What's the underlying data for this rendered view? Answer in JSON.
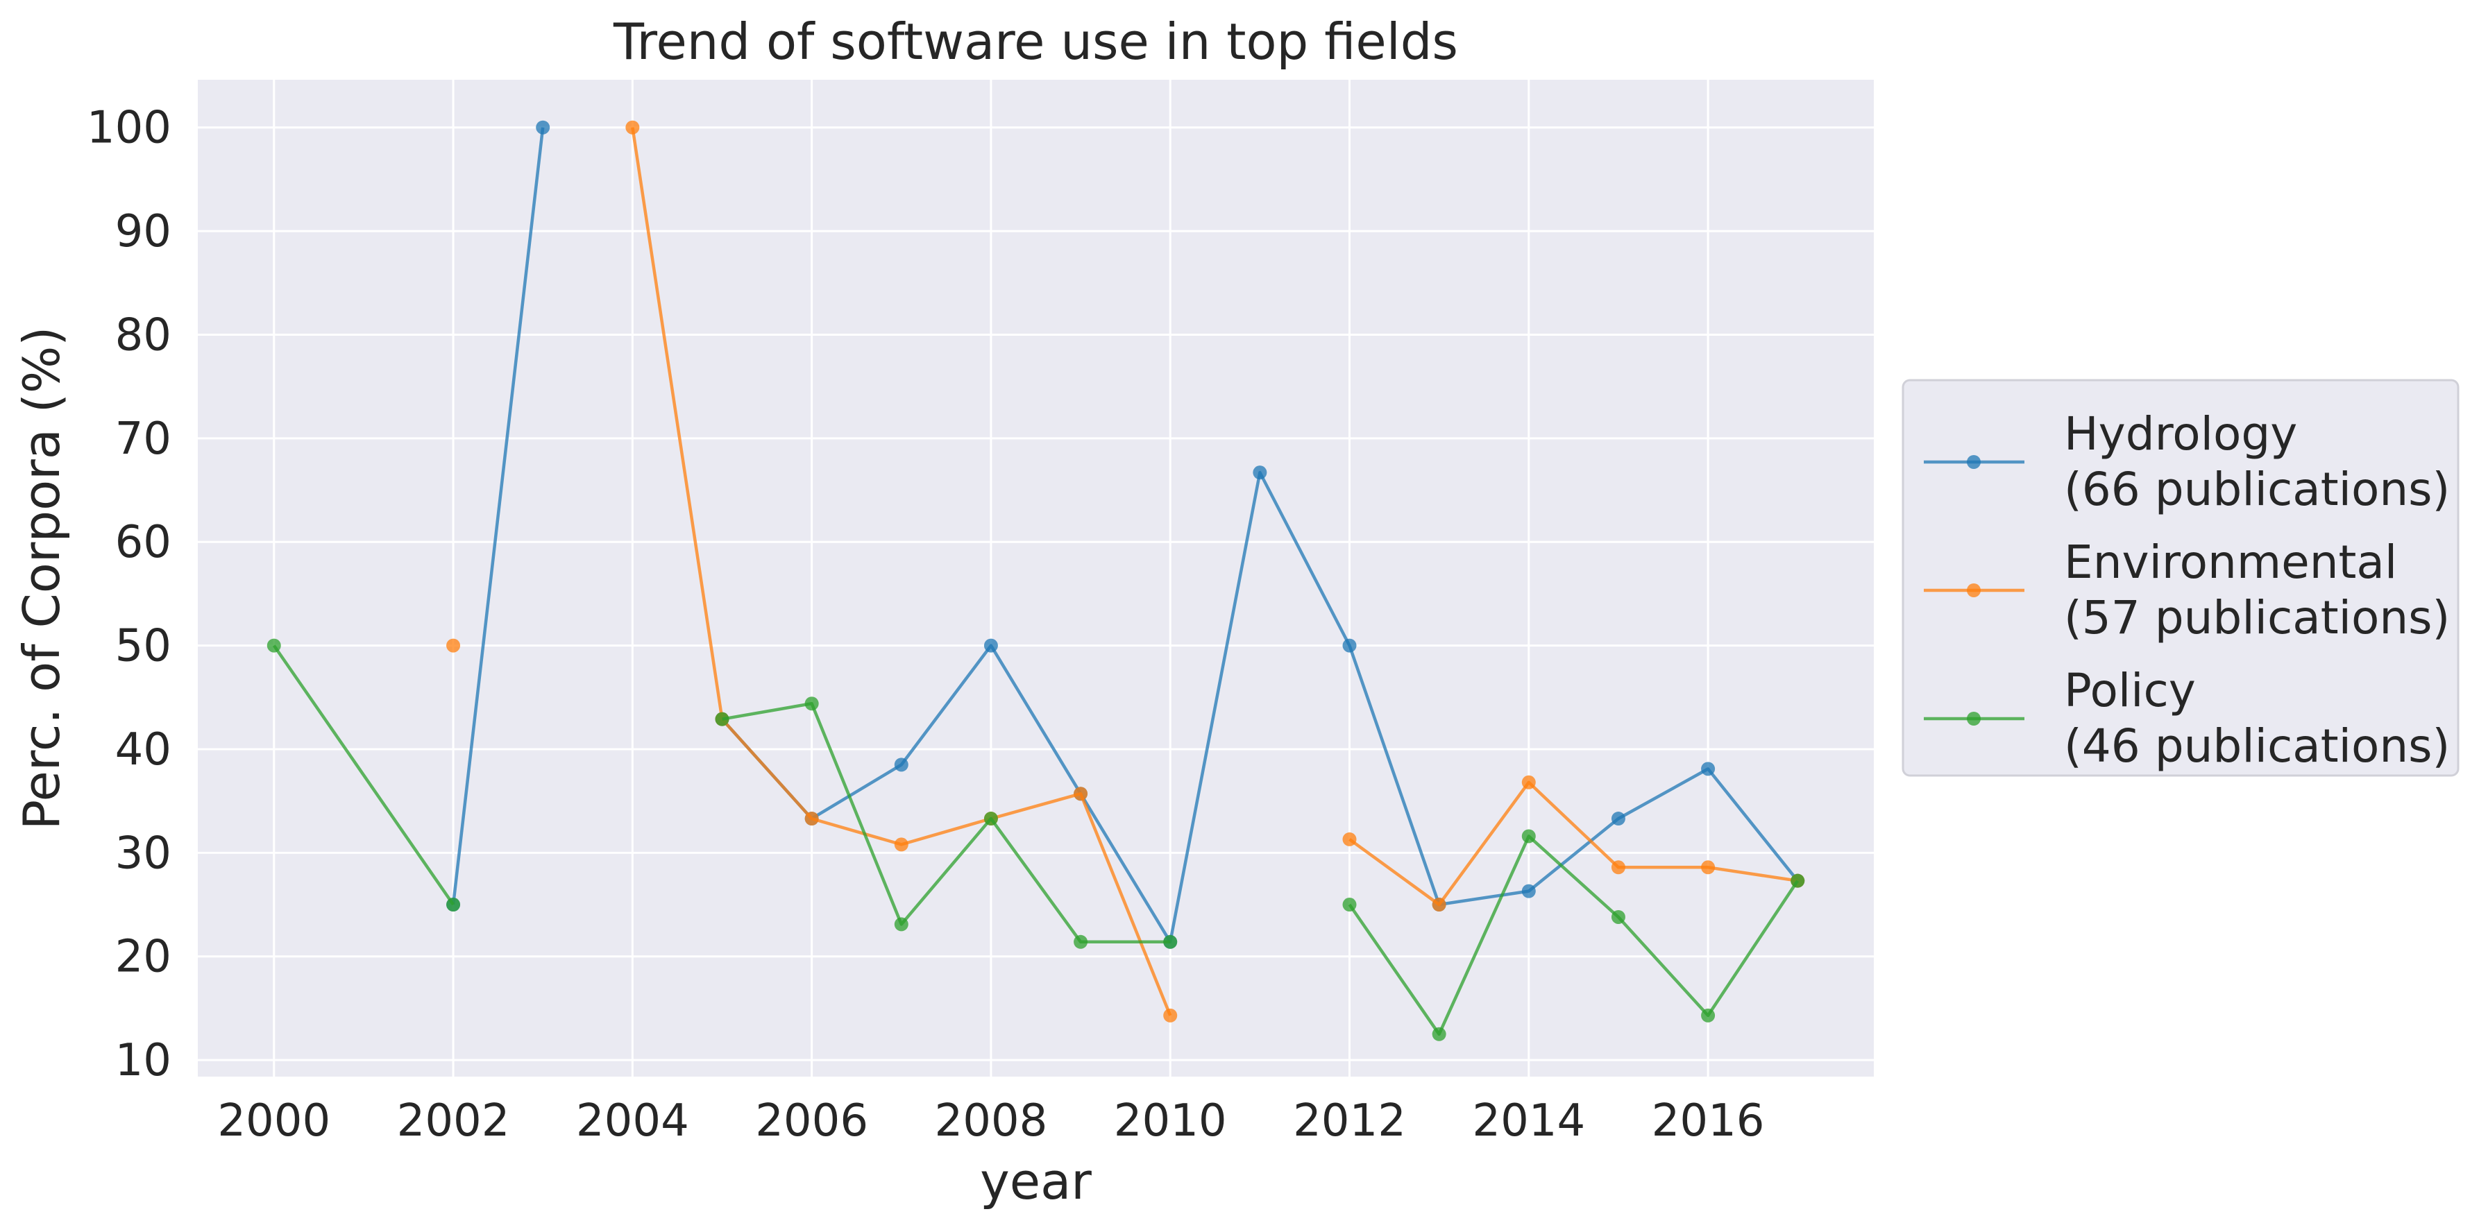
{
  "chart_data": {
    "type": "line",
    "title": "Trend of software use in top fields",
    "xlabel": "year",
    "ylabel": "Perc. of Corpora (%)",
    "xlim": [
      1999.15,
      2017.85
    ],
    "ylim": [
      8.4,
      104.6
    ],
    "xticks": [
      2000,
      2002,
      2004,
      2006,
      2008,
      2010,
      2012,
      2014,
      2016
    ],
    "yticks": [
      10,
      20,
      30,
      40,
      50,
      60,
      70,
      80,
      90,
      100
    ],
    "grid": true,
    "legend_position": "right, outside plot",
    "background": "#eaeaf2",
    "series": [
      {
        "name": "Hydrology\n(66 publications)",
        "color": "#1f77b4",
        "points": [
          [
            2002,
            25
          ],
          [
            2003,
            100
          ],
          [
            null,
            null
          ],
          [
            2005,
            42.9
          ],
          [
            2006,
            33.3
          ],
          [
            2007,
            38.5
          ],
          [
            2008,
            50
          ],
          [
            2009,
            35.7
          ],
          [
            2010,
            21.4
          ],
          [
            2011,
            66.7
          ],
          [
            2012,
            50
          ],
          [
            2013,
            25
          ],
          [
            2014,
            26.3
          ],
          [
            2015,
            33.3
          ],
          [
            2016,
            38.1
          ],
          [
            2017,
            27.3
          ]
        ]
      },
      {
        "name": "Environmental\n(57 publications)",
        "color": "#ff7f0e",
        "points": [
          [
            2002,
            50
          ],
          [
            null,
            null
          ],
          [
            2004,
            100
          ],
          [
            2005,
            42.9
          ],
          [
            2006,
            33.3
          ],
          [
            2007,
            30.8
          ],
          [
            2008,
            33.3
          ],
          [
            2009,
            35.7
          ],
          [
            2010,
            14.3
          ],
          [
            null,
            null
          ],
          [
            2012,
            31.3
          ],
          [
            2013,
            25
          ],
          [
            2014,
            36.8
          ],
          [
            2015,
            28.6
          ],
          [
            2016,
            28.6
          ],
          [
            2017,
            27.3
          ]
        ]
      },
      {
        "name": "Policy\n(46 publications)",
        "color": "#2ca02c",
        "points": [
          [
            2000,
            50
          ],
          [
            2002,
            25
          ],
          [
            null,
            null
          ],
          [
            2005,
            42.9
          ],
          [
            2006,
            44.4
          ],
          [
            2007,
            23.1
          ],
          [
            2008,
            33.3
          ],
          [
            2009,
            21.4
          ],
          [
            2010,
            21.4
          ],
          [
            null,
            null
          ],
          [
            2012,
            25
          ],
          [
            2013,
            12.5
          ],
          [
            2014,
            31.6
          ],
          [
            2015,
            23.8
          ],
          [
            2016,
            14.3
          ],
          [
            2017,
            27.3
          ]
        ]
      }
    ]
  }
}
